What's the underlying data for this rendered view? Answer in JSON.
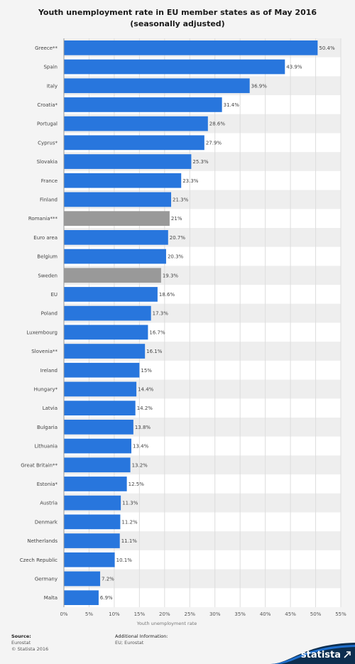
{
  "chart_data": {
    "type": "bar",
    "orientation": "horizontal",
    "title": "Youth unemployment rate in EU member states as of May 2016 (seasonally adjusted)",
    "xlabel": "Youth unemployment rate",
    "ylabel": "",
    "xlim": [
      0,
      55
    ],
    "tick_labels": [
      "0%",
      "5%",
      "10%",
      "15%",
      "20%",
      "25%",
      "30%",
      "35%",
      "40%",
      "45%",
      "50%",
      "55%"
    ],
    "grid": true,
    "categories": [
      "Greece**",
      "Spain",
      "Italy",
      "Croatia*",
      "Portugal",
      "Cyprus*",
      "Slovakia",
      "France",
      "Finland",
      "Romania***",
      "Euro area",
      "Belgium",
      "Sweden",
      "EU",
      "Poland",
      "Luxembourg",
      "Slovenia**",
      "Ireland",
      "Hungary*",
      "Latvia",
      "Bulgaria",
      "Lithuania",
      "Great Britain**",
      "Estonia*",
      "Austria",
      "Denmark",
      "Netherlands",
      "Czech Republic",
      "Germany",
      "Malta"
    ],
    "values": [
      50.4,
      43.9,
      36.9,
      31.4,
      28.6,
      27.9,
      25.3,
      23.3,
      21.3,
      21,
      20.7,
      20.3,
      19.3,
      18.6,
      17.3,
      16.7,
      16.1,
      15,
      14.4,
      14.2,
      13.8,
      13.4,
      13.2,
      12.5,
      11.3,
      11.2,
      11.1,
      10.1,
      7.2,
      6.9
    ],
    "value_labels": [
      "50.4%",
      "43.9%",
      "36.9%",
      "31.4%",
      "28.6%",
      "27.9%",
      "25.3%",
      "23.3%",
      "21.3%",
      "21%",
      "20.7%",
      "20.3%",
      "19.3%",
      "18.6%",
      "17.3%",
      "16.7%",
      "16.1%",
      "15%",
      "14.4%",
      "14.2%",
      "13.8%",
      "13.4%",
      "13.2%",
      "12.5%",
      "11.3%",
      "11.2%",
      "11.1%",
      "10.1%",
      "7.2%",
      "6.9%"
    ],
    "highlighted": [
      "Romania***",
      "Sweden"
    ]
  },
  "colors": {
    "bar": "#2876dd",
    "bar_highlight": "#999999",
    "row_alt": "#eeeeee",
    "row": "#ffffff",
    "brand_dark": "#0d2e4f",
    "brand_accent": "#1f6fce"
  },
  "footer": {
    "source_title": "Source:",
    "source_lines": [
      "Eurostat",
      "© Statista 2016"
    ],
    "info_title": "Additional Information:",
    "info_text": "EU; Eurostat",
    "brand": "statista"
  }
}
